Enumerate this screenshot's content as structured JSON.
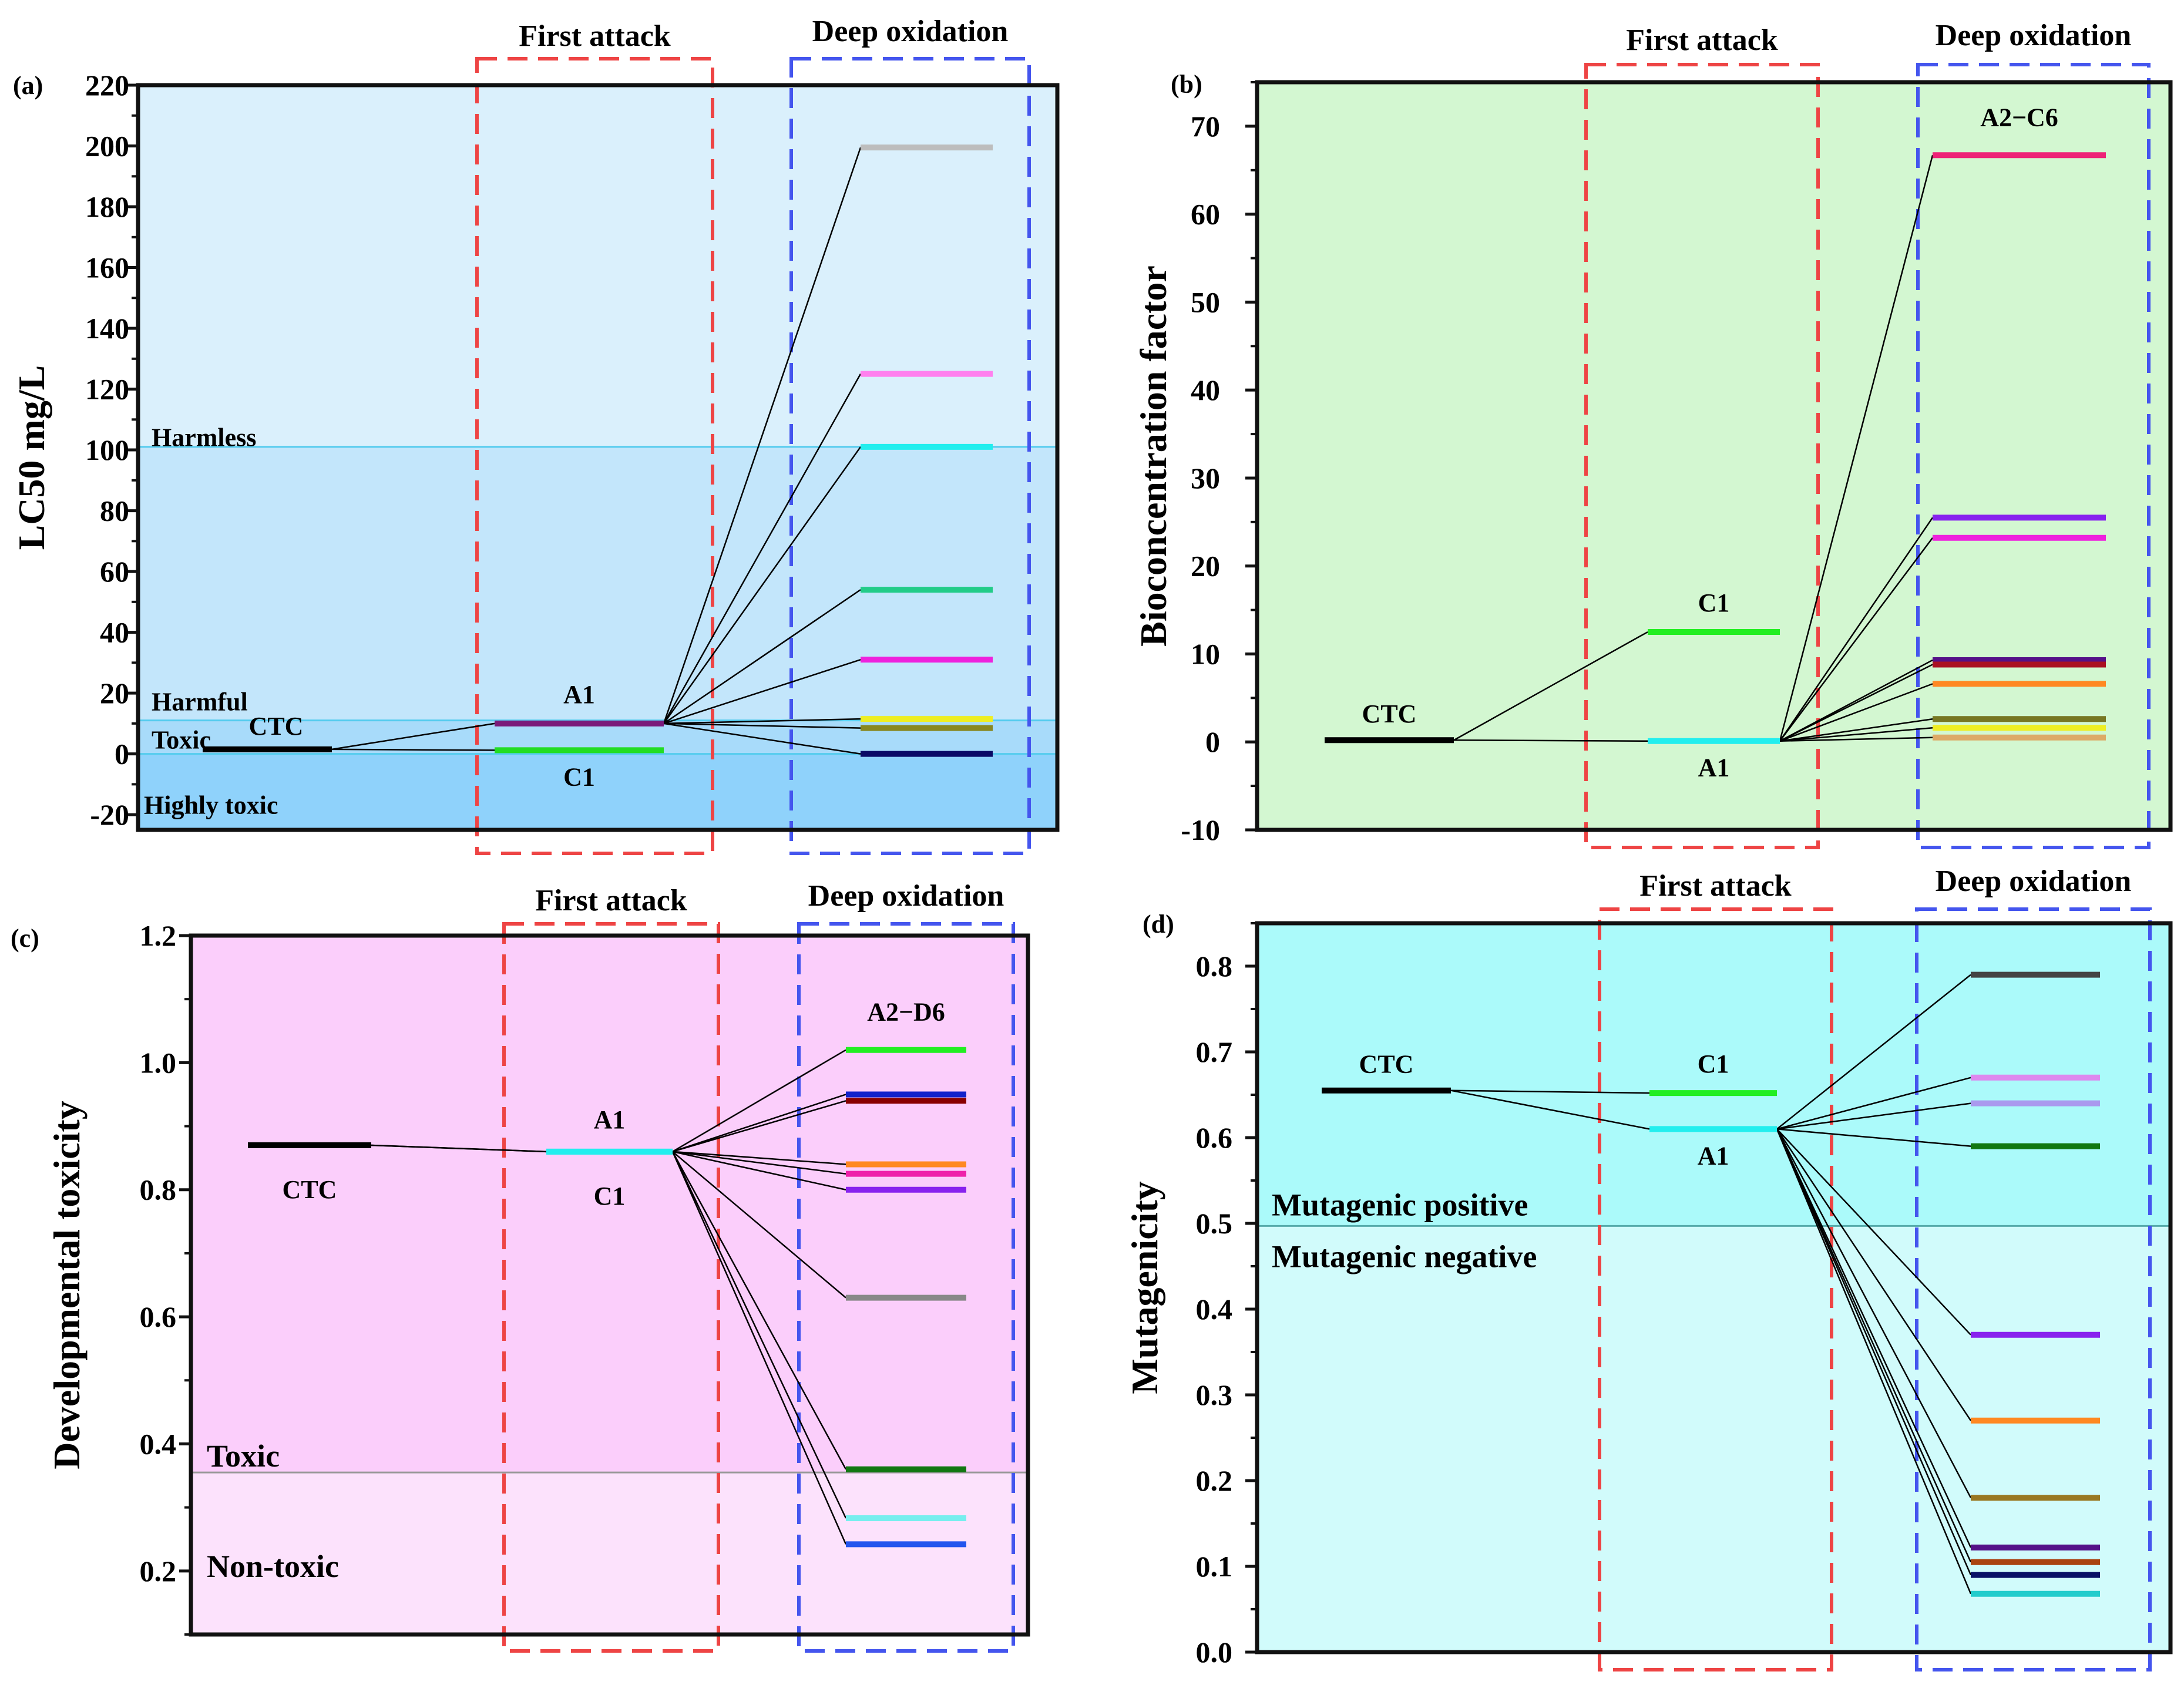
{
  "chart_data": [
    {
      "panel": "(a)",
      "type": "line",
      "ylabel": "LC50 mg/L",
      "ylim": [
        -25,
        220
      ],
      "yticks": [
        -20,
        0,
        20,
        40,
        60,
        80,
        100,
        120,
        140,
        160,
        180,
        200,
        220
      ],
      "yminor": 10,
      "columns": [
        "First attack",
        "Deep oxidation"
      ],
      "regions": [
        {
          "label": "Highly toxic",
          "from": -25,
          "to": 0,
          "color": "#8fd2fb"
        },
        {
          "label": "Toxic",
          "from": 0,
          "to": 11,
          "color": "#a8dbfa"
        },
        {
          "label": "Harmful",
          "from": 11,
          "to": 101,
          "color": "#c3e6fb"
        },
        {
          "label": "Harmless",
          "from": 101,
          "to": 220,
          "color": "#daf0fc"
        }
      ],
      "boundaries": [
        0,
        11,
        101
      ],
      "parent": {
        "label": "CTC",
        "value": 1.5,
        "color": "#000000"
      },
      "first_attack": [
        {
          "label": "A1",
          "value": 10,
          "color": "#7a1a7a"
        },
        {
          "label": "C1",
          "value": 1.2,
          "color": "#22dd22"
        }
      ],
      "deep_oxidation": {
        "label": "",
        "from": "A1",
        "levels": [
          {
            "value": 199.5,
            "color": "#bdbdbd"
          },
          {
            "value": 125,
            "color": "#ff80ee"
          },
          {
            "value": 101,
            "color": "#22eeee"
          },
          {
            "value": 54,
            "color": "#22cc88"
          },
          {
            "value": 31,
            "color": "#ee22dd"
          },
          {
            "value": 11.5,
            "color": "#eeee22"
          },
          {
            "value": 8.5,
            "color": "#888822"
          },
          {
            "value": 0,
            "color": "#0a0a66"
          }
        ]
      }
    },
    {
      "panel": "(b)",
      "type": "line",
      "ylabel": "Bioconcentration factor",
      "ylim": [
        -10,
        75
      ],
      "yticks": [
        -10,
        0,
        10,
        20,
        30,
        40,
        50,
        60,
        70
      ],
      "yminor": 5,
      "columns": [
        "First attack",
        "Deep oxidation"
      ],
      "background": "#d3f7d1",
      "regions": [],
      "boundaries": [],
      "parent": {
        "label": "CTC",
        "value": 0.2,
        "color": "#000000"
      },
      "first_attack": [
        {
          "label": "C1",
          "value": 12.5,
          "color": "#22ee22"
        },
        {
          "label": "A1",
          "value": 0.1,
          "color": "#22eeee"
        }
      ],
      "deep_oxidation": {
        "label": "A2−C6",
        "from": "A1",
        "levels": [
          {
            "value": 66.7,
            "color": "#ee2277"
          },
          {
            "value": 25.5,
            "color": "#8822ee"
          },
          {
            "value": 23.2,
            "color": "#ee22dd"
          },
          {
            "value": 9.3,
            "color": "#551188"
          },
          {
            "value": 8.8,
            "color": "#aa1122"
          },
          {
            "value": 6.6,
            "color": "#ff8822"
          },
          {
            "value": 2.6,
            "color": "#777722"
          },
          {
            "value": 1.6,
            "color": "#eeee22"
          },
          {
            "value": 0.5,
            "color": "#ddaa66"
          }
        ]
      }
    },
    {
      "panel": "(c)",
      "type": "line",
      "ylabel": "Developmental toxicity",
      "ylim": [
        0.1,
        1.2
      ],
      "yticks": [
        0.2,
        0.4,
        0.6,
        0.8,
        1.0,
        1.2
      ],
      "ytick_labels": [
        "0.2",
        "0.4",
        "0.6",
        "0.8",
        "1.0",
        "1.2"
      ],
      "yminor": 0.1,
      "columns": [
        "First attack",
        "Deep oxidation"
      ],
      "regions": [
        {
          "label": "Non-toxic",
          "from": 0.1,
          "to": 0.355,
          "color": "#fce2fc"
        },
        {
          "label": "Toxic",
          "from": 0.355,
          "to": 1.2,
          "color": "#fbcefb"
        }
      ],
      "boundaries": [
        0.355
      ],
      "parent": {
        "label": "CTC",
        "value": 0.87,
        "color": "#000000"
      },
      "first_attack": [
        {
          "label": "A1",
          "value": 0.86,
          "color": "#22eeee",
          "label_pos": "above"
        },
        {
          "label": "C1",
          "value": 0.86,
          "color": "#22eeee",
          "label_pos": "below"
        }
      ],
      "deep_oxidation": {
        "label": "A2−D6",
        "from": "A1",
        "levels": [
          {
            "value": 1.02,
            "color": "#22ee22"
          },
          {
            "value": 0.95,
            "color": "#1122cc"
          },
          {
            "value": 0.94,
            "color": "#880000"
          },
          {
            "value": 0.84,
            "color": "#ff8822"
          },
          {
            "value": 0.825,
            "color": "#ee22aa"
          },
          {
            "value": 0.8,
            "color": "#8822ee"
          },
          {
            "value": 0.63,
            "color": "#888888"
          },
          {
            "value": 0.36,
            "color": "#117711"
          },
          {
            "value": 0.283,
            "color": "#77eeee"
          },
          {
            "value": 0.242,
            "color": "#2255ee"
          }
        ]
      }
    },
    {
      "panel": "(d)",
      "type": "line",
      "ylabel": "Mutagenicity",
      "ylim": [
        0,
        0.85
      ],
      "yticks": [
        0,
        0.1,
        0.2,
        0.3,
        0.4,
        0.5,
        0.6,
        0.7,
        0.8
      ],
      "ytick_labels": [
        "0.0",
        "0.1",
        "0.2",
        "0.3",
        "0.4",
        "0.5",
        "0.6",
        "0.7",
        "0.8"
      ],
      "yminor": 0.05,
      "columns": [
        "First attack",
        "Deep oxidation"
      ],
      "regions": [
        {
          "label": "Mutagenic negative",
          "from": 0,
          "to": 0.497,
          "color": "#d1fbfb"
        },
        {
          "label": "Mutagenic positive",
          "from": 0.497,
          "to": 0.85,
          "color": "#abfafa"
        }
      ],
      "boundaries": [
        0.497
      ],
      "parent": {
        "label": "CTC",
        "value": 0.655,
        "color": "#000000"
      },
      "first_attack": [
        {
          "label": "C1",
          "value": 0.652,
          "color": "#22ee22"
        },
        {
          "label": "A1",
          "value": 0.61,
          "color": "#22eeee"
        }
      ],
      "deep_oxidation": {
        "label": "",
        "from": "A1",
        "levels": [
          {
            "value": 0.79,
            "color": "#444444"
          },
          {
            "value": 0.67,
            "color": "#dd88ee"
          },
          {
            "value": 0.64,
            "color": "#aa99ee"
          },
          {
            "value": 0.59,
            "color": "#117711"
          },
          {
            "value": 0.37,
            "color": "#8822ee"
          },
          {
            "value": 0.27,
            "color": "#ff8822"
          },
          {
            "value": 0.18,
            "color": "#997722"
          },
          {
            "value": 0.122,
            "color": "#551188"
          },
          {
            "value": 0.105,
            "color": "#aa4411"
          },
          {
            "value": 0.09,
            "color": "#0a1166"
          },
          {
            "value": 0.068,
            "color": "#22cccc"
          }
        ]
      }
    }
  ]
}
